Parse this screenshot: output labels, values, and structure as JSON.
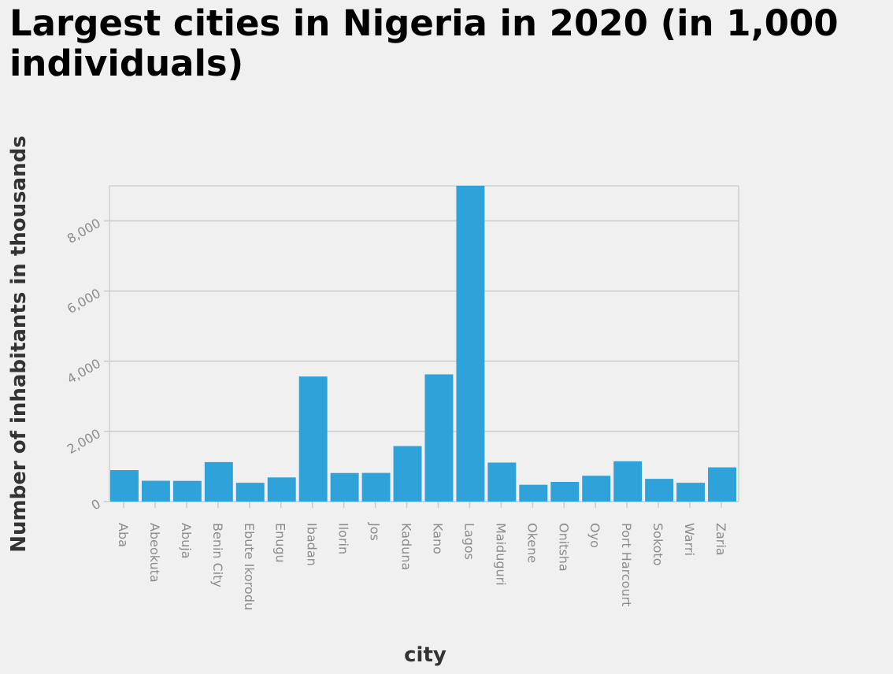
{
  "chart_data": {
    "type": "bar",
    "title": "Largest cities in Nigeria in 2020 (in 1,000 individuals)",
    "xlabel": "city",
    "ylabel": "Number of inhabitants in thousands",
    "categories": [
      "Aba",
      "Abeokuta",
      "Abuja",
      "Benin City",
      "Ebute Ikorodu",
      "Enugu",
      "Ibadan",
      "Ilorin",
      "Jos",
      "Kaduna",
      "Kano",
      "Lagos",
      "Maiduguri",
      "Okene",
      "Onitsha",
      "Oyo",
      "Port Harcourt",
      "Sokoto",
      "Warri",
      "Zaria"
    ],
    "values": [
      897,
      593,
      590,
      1125,
      535,
      688,
      3565,
      814,
      817,
      1582,
      3626,
      9000,
      1112,
      479,
      561,
      736,
      1148,
      648,
      536,
      975
    ],
    "ylim": [
      0,
      9000
    ],
    "yticks": [
      0,
      2000,
      4000,
      6000,
      8000
    ],
    "ytick_labels": [
      "0",
      "2,000",
      "4,000",
      "6,000",
      "8,000"
    ],
    "grid": true,
    "bar_color": "#30a2da"
  }
}
